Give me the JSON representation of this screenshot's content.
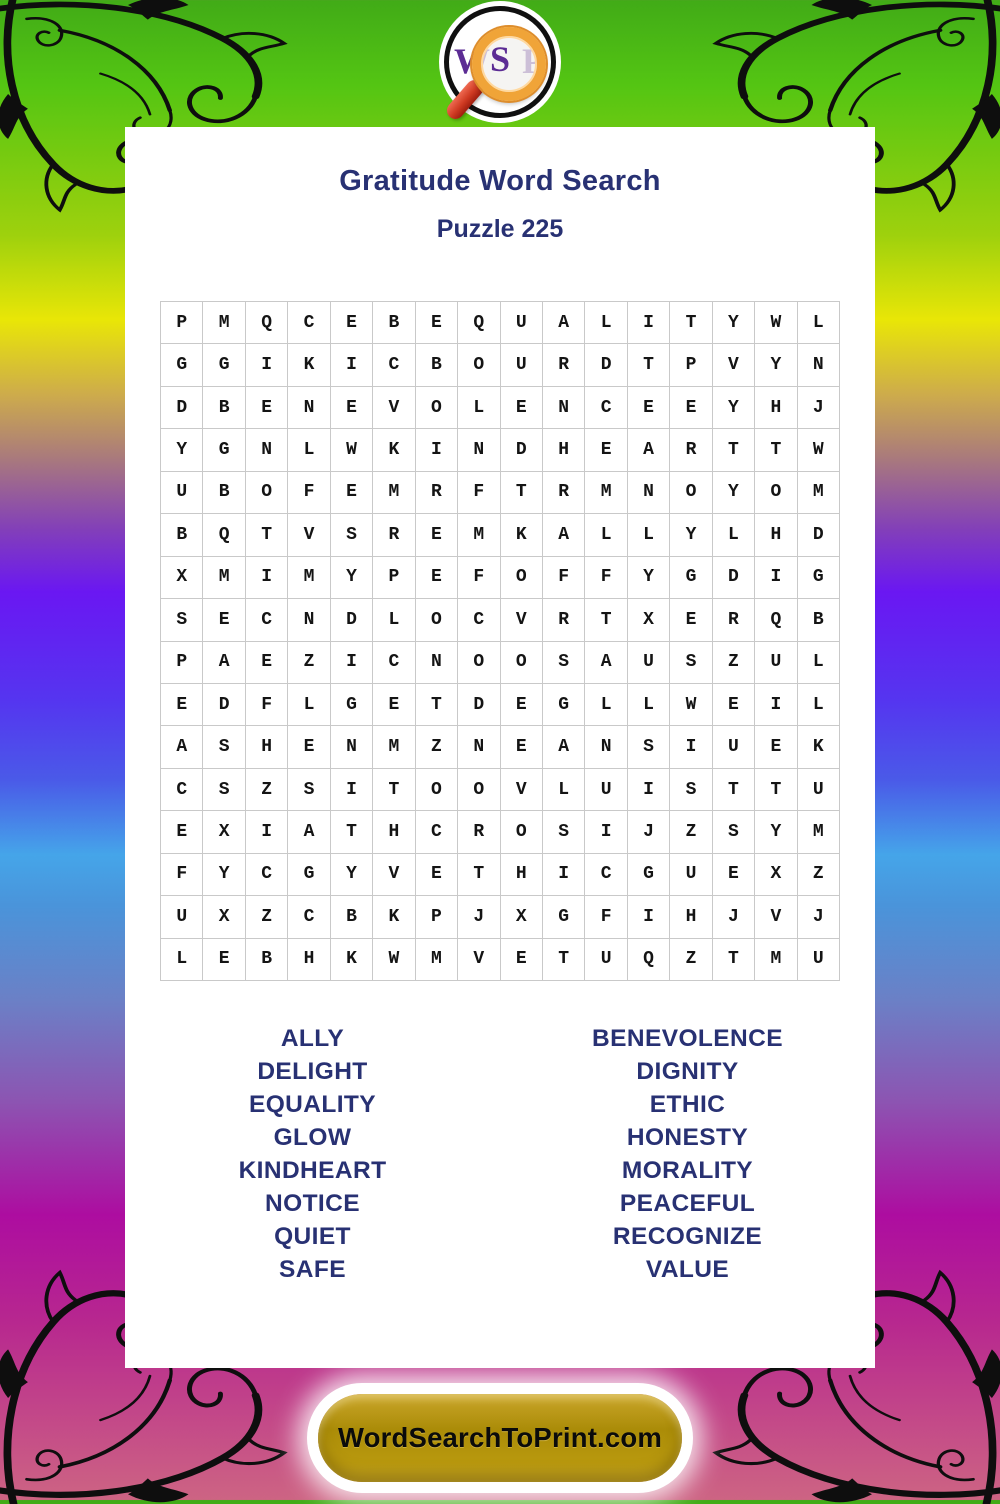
{
  "logo": {
    "letters": [
      "W",
      "S",
      "P"
    ]
  },
  "header": {
    "title": "Gratitude Word Search",
    "subtitle": "Puzzle 225"
  },
  "grid": {
    "rows": [
      "PMQCEBEQUALITYWL",
      "GGIKICBOURDTPVYN",
      "DBENEVOLENCEEYHJ",
      "YGNLWKINDHEARTTW",
      "UBOFEMRFTRMNOYOM",
      "BQTVSREMKALLYLHD",
      "XMIMYPEFOFFYGDIG",
      "SECNDLOCVRTXERQB",
      "PAEZICNOOSAUSZUL",
      "EDFLGETDEGLLWEIL",
      "ASHENMZNEANSIUEK",
      "CSZSITOOVLUISTTU",
      "EXIATHCROSIJZSYM",
      "FYCGYVETHICGUEXZ",
      "UXZCBKPJXGFIHJVJ",
      "LEBHKWMVETUQZTMU"
    ]
  },
  "words": {
    "column1": [
      "ALLY",
      "DELIGHT",
      "EQUALITY",
      "GLOW",
      "KINDHEART",
      "NOTICE",
      "QUIET",
      "SAFE"
    ],
    "column2": [
      "BENEVOLENCE",
      "DIGNITY",
      "ETHIC",
      "HONESTY",
      "MORALITY",
      "PEACEFUL",
      "RECOGNIZE",
      "VALUE"
    ]
  },
  "footer": {
    "site_label": "WordSearchToPrint.com"
  },
  "colors": {
    "title_navy": "#283173",
    "grid_border_gray": "#c9c9c9",
    "button_gold": "#b5950e",
    "logo_purple": "#5c2c94",
    "magnifier_orange": "#f0a438",
    "handle_red": "#cf3a22",
    "bg_green": "#54c513",
    "bg_yellow": "#e9e607",
    "bg_violet": "#6a17f2",
    "bg_sky": "#45a5e9",
    "bg_magenta": "#ad0da0",
    "bg_rose": "#cd6483"
  }
}
